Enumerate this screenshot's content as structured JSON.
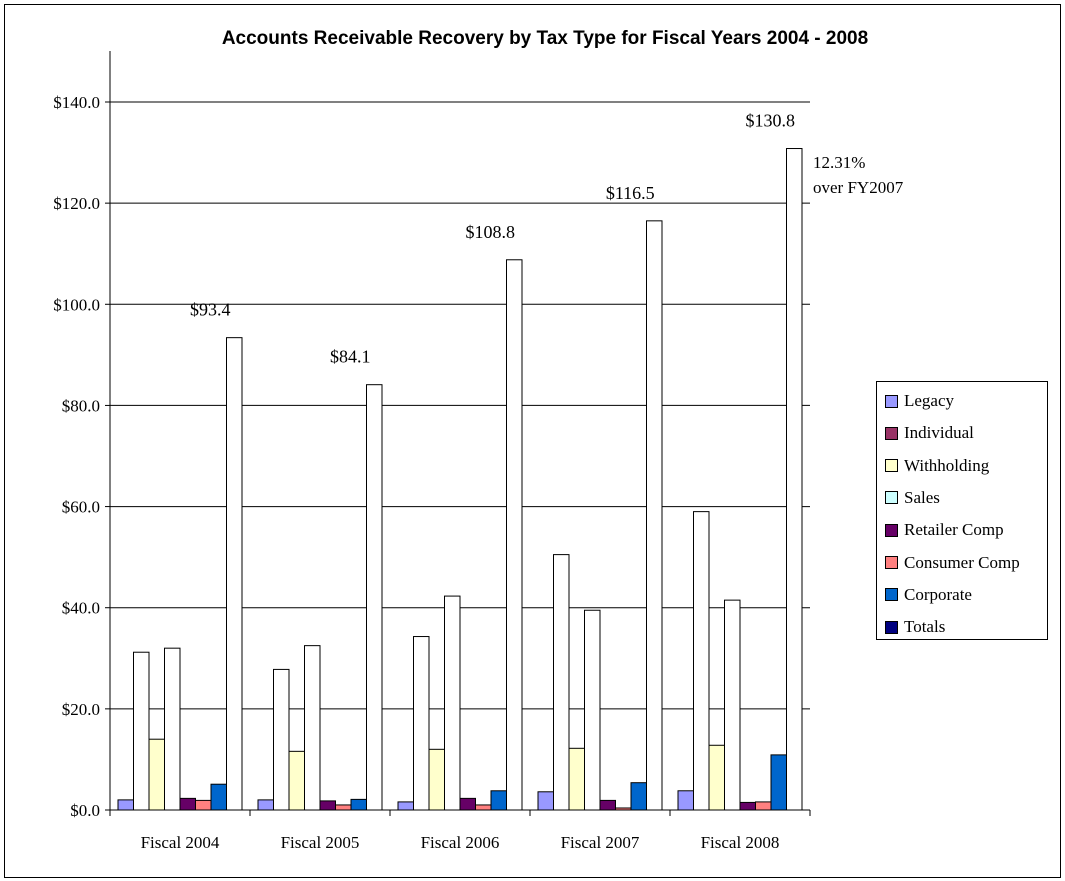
{
  "chart_data": {
    "type": "bar",
    "title": "Accounts Receivable Recovery by Tax Type for Fiscal Years 2004 - 2008",
    "categories": [
      "Fiscal 2004",
      "Fiscal 2005",
      "Fiscal 2006",
      "Fiscal 2007",
      "Fiscal 2008"
    ],
    "ylim": [
      0,
      140
    ],
    "yticks": [
      0,
      20,
      40,
      60,
      80,
      100,
      120,
      140
    ],
    "ytick_labels": [
      "$0.0",
      "$20.0",
      "$40.0",
      "$60.0",
      "$80.0",
      "$100.0",
      "$120.0",
      "$140.0"
    ],
    "grid": true,
    "legend_position": "right",
    "series": [
      {
        "name": "Legacy",
        "color": "#9999ff",
        "values": [
          2.0,
          2.0,
          1.6,
          3.6,
          3.8
        ]
      },
      {
        "name": "Individual",
        "color": "#993366",
        "values": [
          31.2,
          27.8,
          34.3,
          50.5,
          59.0
        ]
      },
      {
        "name": "Withholding",
        "color": "#ffffcc",
        "values": [
          14.0,
          11.6,
          12.0,
          12.2,
          12.8
        ]
      },
      {
        "name": "Sales",
        "color": "#ccffff",
        "values": [
          32.0,
          32.5,
          42.3,
          39.5,
          41.5
        ]
      },
      {
        "name": "Retailer Comp",
        "color": "#660066",
        "values": [
          2.3,
          1.8,
          2.3,
          1.9,
          1.5
        ]
      },
      {
        "name": "Consumer Comp",
        "color": "#ff8080",
        "values": [
          1.9,
          1.0,
          1.0,
          0.4,
          1.6
        ]
      },
      {
        "name": "Corporate",
        "color": "#0066cc",
        "values": [
          5.1,
          2.1,
          3.8,
          5.4,
          10.9
        ]
      },
      {
        "name": "Totals",
        "color": "#000080",
        "values": [
          93.4,
          84.1,
          108.8,
          116.5,
          130.8
        ]
      }
    ],
    "total_labels": [
      "$93.4",
      "$84.1",
      "$108.8",
      "$116.5",
      "$130.8"
    ],
    "annotation": [
      "12.31%",
      "over FY2007"
    ]
  }
}
